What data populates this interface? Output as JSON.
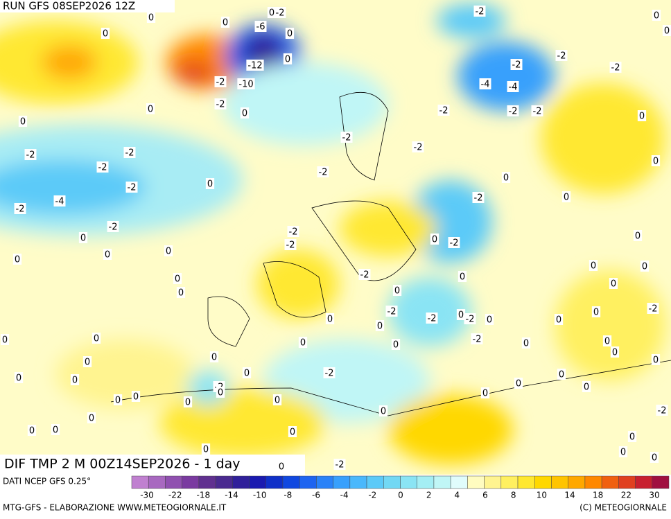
{
  "header": {
    "run": "RUN GFS 08SEP2026 12Z"
  },
  "caption": "DIF TMP 2 M 00Z14SEP2026 - 1 day",
  "footer": {
    "source": "DATI NCEP GFS 0.25°",
    "credit": "MTG-GFS - ELABORAZIONE WWW.METEOGIORNALE.IT",
    "copyright": "(C) METEOGIORNALE"
  },
  "colorbar": {
    "colors": [
      "#c080d0",
      "#a868c0",
      "#9050b0",
      "#7a3aa0",
      "#603090",
      "#4a2a90",
      "#30209a",
      "#1a1ab0",
      "#1030c8",
      "#1048e0",
      "#1e64f0",
      "#2a82f8",
      "#38a0fc",
      "#4ab8fc",
      "#5ccaf8",
      "#72d8f4",
      "#8ae4f4",
      "#a4eef4",
      "#c0f6f6",
      "#e0fcfc",
      "#fffcc0",
      "#fff490",
      "#fff060",
      "#ffe830",
      "#ffd800",
      "#ffc400",
      "#ffa800",
      "#ff8800",
      "#f06010",
      "#e04020",
      "#c82030",
      "#a01040"
    ],
    "ticks": [
      -30,
      -22,
      -18,
      -14,
      -10,
      -8,
      -6,
      -4,
      -2,
      0,
      2,
      4,
      6,
      8,
      10,
      14,
      18,
      22,
      30
    ]
  },
  "map": {
    "contour_labels": [
      0,
      0,
      0,
      -2,
      -6,
      -2,
      0,
      0,
      0,
      0,
      -2,
      -12,
      0,
      -2,
      -2,
      -2,
      -10,
      -4,
      -4,
      0,
      -2,
      0,
      -2,
      -2,
      -2,
      0,
      0,
      -2,
      -2,
      -2,
      -2,
      -2,
      0,
      -2,
      0,
      0,
      -2,
      -4,
      -2,
      -2,
      0,
      -2,
      -2,
      0,
      -2,
      0,
      -2,
      0,
      0,
      0,
      0,
      0,
      0,
      0,
      -2,
      0,
      0,
      0,
      0,
      -2,
      0,
      -2,
      -2,
      0,
      -2,
      0,
      0,
      0,
      0,
      0,
      0,
      0,
      -2,
      0,
      0,
      0,
      0,
      0,
      0,
      0,
      0,
      -2,
      0,
      0,
      0,
      -2,
      0,
      0,
      0,
      0,
      0,
      0,
      0,
      0,
      0,
      0,
      -2,
      0,
      0,
      0,
      0,
      0,
      0,
      0,
      -2,
      0
    ]
  }
}
